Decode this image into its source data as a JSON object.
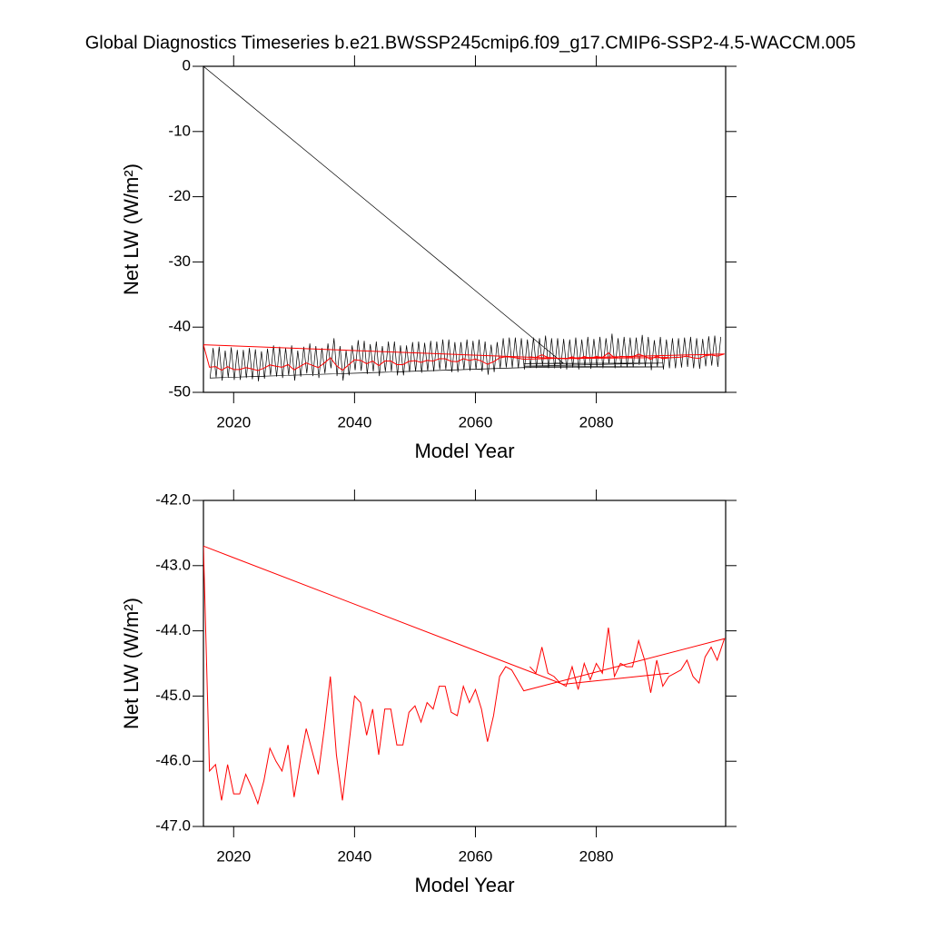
{
  "chart_data": [
    {
      "type": "line",
      "title": "Global Diagnostics Timeseries b.e21.BWSSP245cmip6.f09_g17.CMIP6-SSP2-4.5-WACCM.005",
      "x_label": "Model Year",
      "y_label": "Net LW (W/m²)",
      "xlim": [
        2015,
        2101.4
      ],
      "xticks": [
        2020,
        2040,
        2060,
        2080
      ],
      "ylim": [
        -50,
        0
      ],
      "yticks": [
        0,
        -10,
        -20,
        -30,
        -40,
        -50
      ],
      "series": [
        {
          "color": "#000000",
          "x": [
            2015,
            2074.5,
            2068,
            2091,
            2068,
            2091,
            2068,
            2016.1,
            2016.6,
            2017.1,
            2017.6,
            2018.1,
            2018.6,
            2019.1,
            2019.6,
            2020.1,
            2020.6,
            2021.1,
            2021.6,
            2022.1,
            2022.6,
            2023.1,
            2023.6,
            2024.1,
            2024.6,
            2025.1,
            2025.6,
            2026.1,
            2026.6,
            2027.1,
            2027.6,
            2028.1,
            2028.6,
            2029.1,
            2029.6,
            2030.1,
            2030.6,
            2031.1,
            2031.6,
            2032.1,
            2032.6,
            2033.1,
            2033.6,
            2034.1,
            2034.6,
            2035.1,
            2035.6,
            2036.1,
            2036.6,
            2037.1,
            2037.6,
            2038.1,
            2038.6,
            2039.1,
            2039.6,
            2040.1,
            2040.6,
            2041.1,
            2041.6,
            2042.1,
            2042.6,
            2043.1,
            2043.6,
            2044.1,
            2044.6,
            2045.1,
            2045.6,
            2046.1,
            2046.6,
            2047.1,
            2047.6,
            2048.1,
            2048.6,
            2049.1,
            2049.6,
            2050.1,
            2050.6,
            2051.1,
            2051.6,
            2052.1,
            2052.6,
            2053.1,
            2053.6,
            2054.1,
            2054.6,
            2055.1,
            2055.6,
            2056.1,
            2056.6,
            2057.1,
            2057.6,
            2058.1,
            2058.6,
            2059.1,
            2059.6,
            2060.1,
            2060.6,
            2061.1,
            2061.6,
            2062.1,
            2062.6,
            2063.1,
            2063.6,
            2064.1,
            2064.6,
            2065.1,
            2065.6,
            2066.1,
            2066.6,
            2067.1,
            2067.6,
            2068.1,
            2068.6,
            2069.1,
            2069.6,
            2070.1,
            2070.6,
            2071.1,
            2071.6,
            2072.1,
            2072.6,
            2073.1,
            2073.6,
            2074.1,
            2074.6,
            2075.1,
            2075.6,
            2076.1,
            2076.6,
            2077.1,
            2077.6,
            2078.1,
            2078.6,
            2079.1,
            2079.6,
            2080.1,
            2080.6,
            2081.1,
            2081.6,
            2082.1,
            2082.6,
            2083.1,
            2083.6,
            2084.1,
            2084.6,
            2085.1,
            2085.6,
            2086.1,
            2086.6,
            2087.1,
            2087.6,
            2088.1,
            2088.6,
            2089.1,
            2089.6,
            2090.1,
            2090.6,
            2091.1,
            2091.6,
            2092.1,
            2092.6,
            2093.1,
            2093.6,
            2094.1,
            2094.6,
            2095.1,
            2095.6,
            2096.1,
            2096.6,
            2097.1,
            2097.6,
            2098.1,
            2098.6,
            2099.1,
            2099.6,
            2100.1,
            2100.6
          ],
          "values": [
            0,
            -45.5,
            -45.6,
            -45.5,
            -46.0,
            -46.1,
            -46.2,
            -47.8,
            -43.2,
            -47.7,
            -43.0,
            -48.2,
            -43.6,
            -47.7,
            -43.1,
            -48.1,
            -43.5,
            -48.1,
            -43.5,
            -47.8,
            -43.2,
            -48.0,
            -43.4,
            -48.3,
            -43.7,
            -47.9,
            -43.3,
            -47.4,
            -42.8,
            -47.6,
            -43.0,
            -47.8,
            -43.2,
            -47.4,
            -42.8,
            -48.2,
            -43.6,
            -47.6,
            -43.0,
            -47.1,
            -42.5,
            -47.5,
            -42.9,
            -47.8,
            -43.2,
            -47.1,
            -42.5,
            -46.3,
            -41.7,
            -47.5,
            -42.9,
            -48.2,
            -43.6,
            -47.4,
            -42.8,
            -46.6,
            -42.0,
            -46.7,
            -42.1,
            -47.2,
            -42.6,
            -46.8,
            -42.2,
            -47.5,
            -42.9,
            -46.8,
            -42.2,
            -46.8,
            -42.2,
            -47.4,
            -42.8,
            -47.4,
            -42.8,
            -46.9,
            -42.3,
            -46.8,
            -42.2,
            -47.0,
            -42.4,
            -46.7,
            -42.1,
            -46.8,
            -42.2,
            -46.5,
            -41.9,
            -46.5,
            -41.9,
            -46.9,
            -42.3,
            -46.9,
            -42.3,
            -46.5,
            -41.9,
            -46.7,
            -42.1,
            -46.5,
            -41.9,
            -46.8,
            -42.2,
            -47.3,
            -42.7,
            -46.9,
            -42.3,
            -46.3,
            -41.7,
            -46.2,
            -41.6,
            -46.2,
            -41.6,
            -46.3,
            -41.7,
            -46.5,
            -41.9,
            -46.2,
            -41.6,
            -46.3,
            -41.7,
            -45.9,
            -41.3,
            -46.3,
            -41.7,
            -46.3,
            -41.7,
            -46.4,
            -41.8,
            -46.5,
            -41.9,
            -46.2,
            -41.6,
            -46.5,
            -41.9,
            -46.1,
            -41.5,
            -46.4,
            -41.8,
            -46.1,
            -41.5,
            -46.3,
            -41.7,
            -45.6,
            -41.0,
            -46.3,
            -41.7,
            -46.1,
            -41.5,
            -46.2,
            -41.6,
            -46.2,
            -41.6,
            -45.8,
            -41.2,
            -46.1,
            -41.5,
            -46.6,
            -42.0,
            -46.1,
            -41.5,
            -46.5,
            -41.9,
            -46.3,
            -41.7,
            -46.3,
            -41.7,
            -46.2,
            -41.6,
            -46.1,
            -41.5,
            -46.3,
            -41.7,
            -46.4,
            -41.8,
            -46.0,
            -41.4,
            -45.9,
            -41.3,
            -46.1,
            -41.5
          ]
        },
        {
          "color": "#ff0000",
          "x": [
            2092,
            2074.5,
            2015,
            2016,
            2017,
            2018,
            2019,
            2020,
            2021,
            2022,
            2023,
            2024,
            2025,
            2026,
            2027,
            2028,
            2029,
            2030,
            2031,
            2032,
            2033,
            2034,
            2035,
            2036,
            2037,
            2038,
            2039,
            2040,
            2041,
            2042,
            2043,
            2044,
            2045,
            2046,
            2047,
            2048,
            2049,
            2050,
            2051,
            2052,
            2053,
            2054,
            2055,
            2056,
            2057,
            2058,
            2059,
            2060,
            2061,
            2062,
            2063,
            2064,
            2065,
            2066,
            2068,
            2101.2,
            2100,
            2099,
            2098,
            2097,
            2096,
            2095,
            2094,
            2093,
            2092,
            2091,
            2090,
            2089,
            2088,
            2087,
            2086,
            2085,
            2084,
            2083,
            2082,
            2081,
            2080,
            2079,
            2078,
            2077,
            2076,
            2075,
            2074,
            2073,
            2072,
            2071,
            2070,
            2069
          ],
          "values": [
            -44.65,
            -44.82,
            -42.7,
            -46.15,
            -46.05,
            -46.6,
            -46.05,
            -46.5,
            -46.5,
            -46.2,
            -46.4,
            -46.65,
            -46.3,
            -45.8,
            -46.0,
            -46.15,
            -45.75,
            -46.55,
            -46.0,
            -45.5,
            -45.85,
            -46.2,
            -45.5,
            -44.7,
            -45.9,
            -46.6,
            -45.8,
            -45.0,
            -45.1,
            -45.6,
            -45.2,
            -45.9,
            -45.2,
            -45.2,
            -45.75,
            -45.75,
            -45.25,
            -45.15,
            -45.4,
            -45.1,
            -45.2,
            -44.85,
            -44.85,
            -45.25,
            -45.3,
            -44.85,
            -45.1,
            -44.9,
            -45.2,
            -45.7,
            -45.3,
            -44.7,
            -44.55,
            -44.6,
            -44.92,
            -44.12,
            -44.45,
            -44.25,
            -44.4,
            -44.8,
            -44.7,
            -44.45,
            -44.6,
            -44.65,
            -44.7,
            -44.85,
            -44.45,
            -44.95,
            -44.45,
            -44.15,
            -44.55,
            -44.55,
            -44.5,
            -44.7,
            -43.95,
            -44.65,
            -44.5,
            -44.75,
            -44.5,
            -44.9,
            -44.55,
            -44.85,
            -44.8,
            -44.7,
            -44.65,
            -44.25,
            -44.65,
            -44.55
          ]
        }
      ]
    },
    {
      "type": "line",
      "x_label": "Model Year",
      "y_label": "Net LW (W/m²)",
      "xlim": [
        2015,
        2101.4
      ],
      "xticks": [
        2020,
        2040,
        2060,
        2080
      ],
      "ylim": [
        -47,
        -42
      ],
      "yticks": [
        {
          "value": -42,
          "label": "-42.0"
        },
        {
          "value": -43,
          "label": "-43.0"
        },
        {
          "value": -44,
          "label": "-44.0"
        },
        {
          "value": -45,
          "label": "-45.0"
        },
        {
          "value": -46,
          "label": "-46.0"
        },
        {
          "value": -47,
          "label": "-47.0"
        }
      ],
      "series": [
        {
          "color": "#ff0000",
          "x": [
            2092,
            2074.5,
            2015,
            2016,
            2017,
            2018,
            2019,
            2020,
            2021,
            2022,
            2023,
            2024,
            2025,
            2026,
            2027,
            2028,
            2029,
            2030,
            2031,
            2032,
            2033,
            2034,
            2035,
            2036,
            2037,
            2038,
            2039,
            2040,
            2041,
            2042,
            2043,
            2044,
            2045,
            2046,
            2047,
            2048,
            2049,
            2050,
            2051,
            2052,
            2053,
            2054,
            2055,
            2056,
            2057,
            2058,
            2059,
            2060,
            2061,
            2062,
            2063,
            2064,
            2065,
            2066,
            2068,
            2101.2,
            2100,
            2099,
            2098,
            2097,
            2096,
            2095,
            2094,
            2093,
            2092,
            2091,
            2090,
            2089,
            2088,
            2087,
            2086,
            2085,
            2084,
            2083,
            2082,
            2081,
            2080,
            2079,
            2078,
            2077,
            2076,
            2075,
            2074,
            2073,
            2072,
            2071,
            2070,
            2069
          ],
          "values": [
            -44.65,
            -44.82,
            -42.7,
            -46.15,
            -46.05,
            -46.6,
            -46.05,
            -46.5,
            -46.5,
            -46.2,
            -46.4,
            -46.65,
            -46.3,
            -45.8,
            -46.0,
            -46.15,
            -45.75,
            -46.55,
            -46.0,
            -45.5,
            -45.85,
            -46.2,
            -45.5,
            -44.7,
            -45.9,
            -46.6,
            -45.8,
            -45.0,
            -45.1,
            -45.6,
            -45.2,
            -45.9,
            -45.2,
            -45.2,
            -45.75,
            -45.75,
            -45.25,
            -45.15,
            -45.4,
            -45.1,
            -45.2,
            -44.85,
            -44.85,
            -45.25,
            -45.3,
            -44.85,
            -45.1,
            -44.9,
            -45.2,
            -45.7,
            -45.3,
            -44.7,
            -44.55,
            -44.6,
            -44.92,
            -44.12,
            -44.45,
            -44.25,
            -44.4,
            -44.8,
            -44.7,
            -44.45,
            -44.6,
            -44.65,
            -44.7,
            -44.85,
            -44.45,
            -44.95,
            -44.45,
            -44.15,
            -44.55,
            -44.55,
            -44.5,
            -44.7,
            -43.95,
            -44.65,
            -44.5,
            -44.75,
            -44.5,
            -44.9,
            -44.55,
            -44.85,
            -44.8,
            -44.7,
            -44.65,
            -44.25,
            -44.65,
            -44.55
          ]
        }
      ]
    }
  ]
}
